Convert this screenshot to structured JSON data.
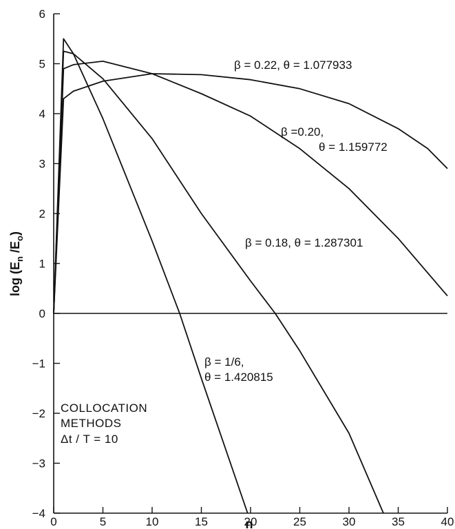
{
  "chart_data": {
    "type": "line",
    "title": "",
    "xlabel": "n",
    "ylabel": "log (E_n / E_0)",
    "xlim": [
      0,
      40
    ],
    "ylim": [
      -4,
      6
    ],
    "x_ticks": [
      0,
      5,
      10,
      15,
      20,
      25,
      30,
      35,
      40
    ],
    "y_ticks": [
      -4,
      -3,
      -2,
      -1,
      0,
      1,
      2,
      3,
      4,
      5,
      6
    ],
    "grid": false,
    "reference_line_y": 0,
    "series": [
      {
        "label_lines": [
          "β = 0.22, θ = 1.077933"
        ],
        "x": [
          0,
          1,
          2,
          5,
          10,
          15,
          20,
          25,
          30,
          35,
          38,
          40
        ],
        "y": [
          0,
          4.3,
          4.45,
          4.65,
          4.8,
          4.78,
          4.68,
          4.5,
          4.2,
          3.7,
          3.3,
          2.9
        ]
      },
      {
        "label_lines": [
          "β =0.20,",
          "θ = 1.159772"
        ],
        "x": [
          0,
          1,
          2,
          5,
          10,
          15,
          20,
          25,
          30,
          35,
          40
        ],
        "y": [
          0,
          4.9,
          4.98,
          5.05,
          4.8,
          4.4,
          3.95,
          3.3,
          2.5,
          1.5,
          0.35
        ]
      },
      {
        "label_lines": [
          "β = 0.18, θ = 1.287301"
        ],
        "x": [
          0,
          1,
          2,
          5,
          10,
          15,
          20,
          22.5,
          25,
          30,
          33.5
        ],
        "y": [
          0,
          5.25,
          5.2,
          4.7,
          3.5,
          2.0,
          0.65,
          0,
          -0.75,
          -2.4,
          -4.0
        ]
      },
      {
        "label_lines": [
          "β = 1/6,",
          "θ = 1.420815"
        ],
        "x": [
          0,
          1,
          2,
          5,
          10,
          12.8,
          15,
          19.7
        ],
        "y": [
          0,
          5.5,
          5.2,
          3.9,
          1.45,
          0,
          -1.3,
          -4.0
        ]
      }
    ],
    "annotation_lines": [
      "COLLOCATION",
      "METHODS",
      "Δt / T = 10"
    ]
  }
}
